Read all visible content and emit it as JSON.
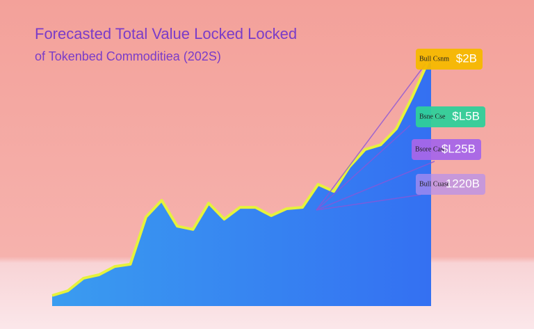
{
  "chart_data": {
    "type": "area",
    "title": "Forecasted Total Value Locked Locked",
    "subtitle": "of Tokenbed Commoditiea (202S)",
    "categories": [
      null,
      null,
      null,
      null,
      null,
      null,
      null,
      null,
      null,
      null,
      null,
      null,
      null,
      null,
      null,
      null,
      null,
      null,
      null,
      null,
      null,
      null,
      null,
      null,
      null
    ],
    "values": [
      4.2,
      6.1,
      11.1,
      12.5,
      15.8,
      16.7,
      35.6,
      42.2,
      31.9,
      30.6,
      41.1,
      34.7,
      39.4,
      39.4,
      36.1,
      38.9,
      39.4,
      48.6,
      45.8,
      55.6,
      62.5,
      64.4,
      70.8,
      83.3,
      97.2
    ],
    "ylim": [
      0,
      100
    ],
    "color": "#2f86f2",
    "line_color": "#e6f23c",
    "annotations": [
      {
        "name": "Bull Csnm",
        "text": "$2B",
        "color": "#f5b800"
      },
      {
        "name": "Bsne Cse",
        "text": "$L5B",
        "color": "#2fcf9a"
      },
      {
        "name": "Bsore Case",
        "text": "$L25B",
        "color": "#a766e8"
      },
      {
        "name": "Bull Cuase",
        "text": "1220B",
        "color": "#b48ef0"
      }
    ]
  }
}
